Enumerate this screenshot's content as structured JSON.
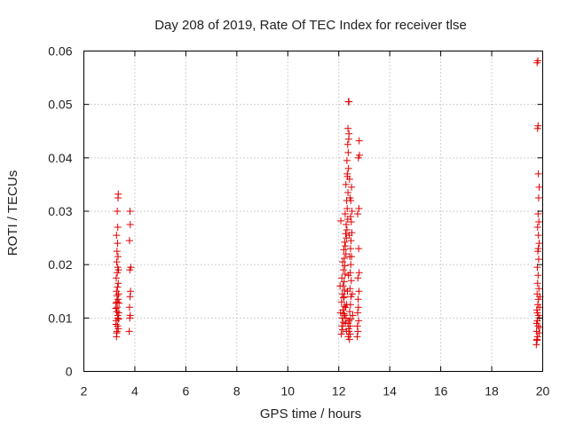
{
  "chart_data": {
    "type": "scatter",
    "title": "Day 208 of 2019, Rate Of TEC Index for receiver tlse",
    "xlabel": "GPS time / hours",
    "ylabel": "ROTI / TECUs",
    "xlim": [
      2,
      20
    ],
    "ylim": [
      0,
      0.06
    ],
    "xticks": [
      2,
      4,
      6,
      8,
      10,
      12,
      14,
      16,
      18,
      20
    ],
    "xtick_labels": [
      "2",
      "4",
      "6",
      "8",
      "10",
      "12",
      "14",
      "16",
      "18",
      "20"
    ],
    "yticks": [
      0,
      0.01,
      0.02,
      0.03,
      0.04,
      0.05,
      0.06
    ],
    "ytick_labels": [
      "0",
      "0.01",
      "0.02",
      "0.03",
      "0.04",
      "0.05",
      "0.06"
    ],
    "grid": true,
    "marker": "+",
    "marker_color": "#e00000",
    "series": [
      {
        "name": "ROTI",
        "points": [
          [
            3.28,
            0.0065
          ],
          [
            3.3,
            0.0075
          ],
          [
            3.32,
            0.0085
          ],
          [
            3.27,
            0.0095
          ],
          [
            3.33,
            0.0105
          ],
          [
            3.29,
            0.0112
          ],
          [
            3.31,
            0.012
          ],
          [
            3.26,
            0.0128
          ],
          [
            3.34,
            0.0135
          ],
          [
            3.3,
            0.0142
          ],
          [
            3.28,
            0.015
          ],
          [
            3.32,
            0.0158
          ],
          [
            3.35,
            0.0165
          ],
          [
            3.27,
            0.0175
          ],
          [
            3.31,
            0.0185
          ],
          [
            3.33,
            0.0195
          ],
          [
            3.29,
            0.0205
          ],
          [
            3.34,
            0.0215
          ],
          [
            3.3,
            0.0225
          ],
          [
            3.32,
            0.024
          ],
          [
            3.28,
            0.0255
          ],
          [
            3.33,
            0.027
          ],
          [
            3.31,
            0.03
          ],
          [
            3.34,
            0.0325
          ],
          [
            3.35,
            0.0332
          ],
          [
            3.36,
            0.0098
          ],
          [
            3.25,
            0.0118
          ],
          [
            3.36,
            0.0145
          ],
          [
            3.26,
            0.0088
          ],
          [
            3.37,
            0.011
          ],
          [
            3.38,
            0.0128
          ],
          [
            3.29,
            0.0072
          ],
          [
            3.35,
            0.008
          ],
          [
            3.36,
            0.019
          ],
          [
            3.3,
            0.013
          ],
          [
            3.33,
            0.01
          ],
          [
            3.78,
            0.0075
          ],
          [
            3.8,
            0.01
          ],
          [
            3.82,
            0.0105
          ],
          [
            3.79,
            0.012
          ],
          [
            3.81,
            0.014
          ],
          [
            3.83,
            0.015
          ],
          [
            3.8,
            0.019
          ],
          [
            3.84,
            0.0195
          ],
          [
            3.79,
            0.0245
          ],
          [
            3.82,
            0.0275
          ],
          [
            3.81,
            0.03
          ],
          [
            12.1,
            0.007
          ],
          [
            12.15,
            0.0078
          ],
          [
            12.12,
            0.0085
          ],
          [
            12.18,
            0.0092
          ],
          [
            12.13,
            0.01
          ],
          [
            12.2,
            0.0108
          ],
          [
            12.16,
            0.0115
          ],
          [
            12.22,
            0.0122
          ],
          [
            12.11,
            0.013
          ],
          [
            12.19,
            0.0138
          ],
          [
            12.14,
            0.0145
          ],
          [
            12.23,
            0.0152
          ],
          [
            12.17,
            0.016
          ],
          [
            12.21,
            0.0168
          ],
          [
            12.12,
            0.0175
          ],
          [
            12.25,
            0.0182
          ],
          [
            12.18,
            0.019
          ],
          [
            12.24,
            0.0198
          ],
          [
            12.15,
            0.0205
          ],
          [
            12.22,
            0.0212
          ],
          [
            12.28,
            0.022
          ],
          [
            12.2,
            0.0228
          ],
          [
            12.26,
            0.0235
          ],
          [
            12.23,
            0.0242
          ],
          [
            12.3,
            0.025
          ],
          [
            12.27,
            0.0258
          ],
          [
            12.32,
            0.0265
          ],
          [
            12.29,
            0.0275
          ],
          [
            12.35,
            0.0285
          ],
          [
            12.25,
            0.0295
          ],
          [
            12.33,
            0.0305
          ],
          [
            12.31,
            0.032
          ],
          [
            12.36,
            0.0335
          ],
          [
            12.28,
            0.035
          ],
          [
            12.34,
            0.0365
          ],
          [
            12.38,
            0.038
          ],
          [
            12.32,
            0.0395
          ],
          [
            12.37,
            0.041
          ],
          [
            12.35,
            0.0425
          ],
          [
            12.39,
            0.0435
          ],
          [
            12.4,
            0.0445
          ],
          [
            12.33,
            0.037
          ],
          [
            12.36,
            0.0455
          ],
          [
            12.38,
            0.0505
          ],
          [
            12.4,
            0.0505
          ],
          [
            12.08,
            0.0282
          ],
          [
            12.05,
            0.016
          ],
          [
            12.07,
            0.011
          ],
          [
            12.42,
            0.006
          ],
          [
            12.45,
            0.007
          ],
          [
            12.44,
            0.0085
          ],
          [
            12.47,
            0.0098
          ],
          [
            12.43,
            0.0112
          ],
          [
            12.46,
            0.0125
          ],
          [
            12.48,
            0.014
          ],
          [
            12.44,
            0.0155
          ],
          [
            12.49,
            0.017
          ],
          [
            12.45,
            0.0185
          ],
          [
            12.47,
            0.02
          ],
          [
            12.5,
            0.0215
          ],
          [
            12.46,
            0.023
          ],
          [
            12.48,
            0.0245
          ],
          [
            12.51,
            0.026
          ],
          [
            12.49,
            0.028
          ],
          [
            12.52,
            0.03
          ],
          [
            12.47,
            0.032
          ],
          [
            12.5,
            0.0345
          ],
          [
            12.53,
            0.0145
          ],
          [
            12.55,
            0.0105
          ],
          [
            12.41,
            0.0095
          ],
          [
            12.39,
            0.008
          ],
          [
            12.37,
            0.0065
          ],
          [
            12.3,
            0.0075
          ],
          [
            12.26,
            0.009
          ],
          [
            12.24,
            0.0105
          ],
          [
            12.27,
            0.012
          ],
          [
            12.21,
            0.014
          ],
          [
            12.42,
            0.036
          ],
          [
            12.44,
            0.0325
          ],
          [
            12.46,
            0.029
          ],
          [
            12.41,
            0.0255
          ],
          [
            12.43,
            0.0215
          ],
          [
            12.38,
            0.018
          ],
          [
            12.34,
            0.015
          ],
          [
            12.31,
            0.0125
          ],
          [
            12.29,
            0.01
          ],
          [
            12.36,
            0.009
          ],
          [
            12.4,
            0.0075
          ],
          [
            12.72,
            0.0065
          ],
          [
            12.75,
            0.0075
          ],
          [
            12.73,
            0.0085
          ],
          [
            12.78,
            0.0095
          ],
          [
            12.74,
            0.011
          ],
          [
            12.77,
            0.012
          ],
          [
            12.76,
            0.0135
          ],
          [
            12.79,
            0.015
          ],
          [
            12.75,
            0.0175
          ],
          [
            12.8,
            0.0185
          ],
          [
            12.78,
            0.023
          ],
          [
            12.74,
            0.0295
          ],
          [
            12.79,
            0.0305
          ],
          [
            12.77,
            0.04
          ],
          [
            12.81,
            0.0405
          ],
          [
            12.8,
            0.0432
          ],
          [
            19.75,
            0.005
          ],
          [
            19.78,
            0.0058
          ],
          [
            19.8,
            0.0065
          ],
          [
            19.76,
            0.0075
          ],
          [
            19.82,
            0.0085
          ],
          [
            19.79,
            0.0095
          ],
          [
            19.84,
            0.0105
          ],
          [
            19.77,
            0.0115
          ],
          [
            19.81,
            0.0125
          ],
          [
            19.83,
            0.0135
          ],
          [
            19.78,
            0.0145
          ],
          [
            19.85,
            0.0155
          ],
          [
            19.8,
            0.0165
          ],
          [
            19.82,
            0.018
          ],
          [
            19.79,
            0.0195
          ],
          [
            19.84,
            0.021
          ],
          [
            19.81,
            0.0225
          ],
          [
            19.86,
            0.024
          ],
          [
            19.83,
            0.0255
          ],
          [
            19.8,
            0.027
          ],
          [
            19.85,
            0.028
          ],
          [
            19.82,
            0.0295
          ],
          [
            19.84,
            0.0325
          ],
          [
            19.86,
            0.0345
          ],
          [
            19.83,
            0.037
          ],
          [
            19.8,
            0.0455
          ],
          [
            19.82,
            0.046
          ],
          [
            19.78,
            0.0578
          ],
          [
            19.81,
            0.0582
          ],
          [
            19.87,
            0.01
          ],
          [
            19.88,
            0.012
          ],
          [
            19.76,
            0.009
          ],
          [
            19.89,
            0.014
          ],
          [
            19.77,
            0.006
          ],
          [
            19.86,
            0.0072
          ],
          [
            19.88,
            0.0082
          ],
          [
            19.79,
            0.011
          ],
          [
            19.83,
            0.023
          ]
        ]
      }
    ]
  }
}
